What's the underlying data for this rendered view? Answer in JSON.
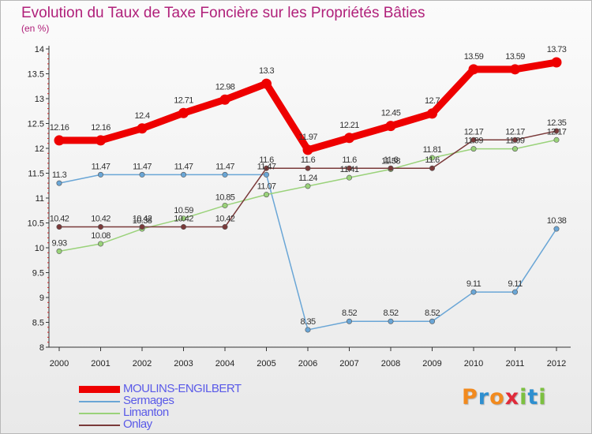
{
  "title": "Evolution du Taux de Taxe Foncière sur les Propriétés Bâties",
  "subtitle": "(en %)",
  "logo": {
    "text": "Proxiti",
    "letters": [
      "P",
      "r",
      "o",
      "x",
      "i",
      "t",
      "i"
    ],
    "colors": [
      "#f28a1e",
      "#2e8fd0",
      "#f28a1e",
      "#e02a3a",
      "#7cc040",
      "#2e8fd0",
      "#7cc040"
    ]
  },
  "chart_data": {
    "type": "line",
    "title": "Evolution du Taux de Taxe Foncière sur les Propriétés Bâties",
    "ylabel": "(en %)",
    "xlabel": "",
    "x": [
      "2000",
      "2001",
      "2002",
      "2003",
      "2004",
      "2005",
      "2006",
      "2007",
      "2008",
      "2009",
      "2010",
      "2011",
      "2012"
    ],
    "ylim": [
      8,
      14
    ],
    "yticks": [
      "8",
      "8.5",
      "9",
      "9.5",
      "10",
      "10.5",
      "11",
      "11.5",
      "12",
      "12.5",
      "13",
      "13.5",
      "14"
    ],
    "grid": false,
    "legend_position": "bottom-left",
    "series": [
      {
        "name": "MOULINS-ENGILBERT",
        "color": "#ee0000",
        "values": [
          12.16,
          12.16,
          12.4,
          12.71,
          12.98,
          13.3,
          11.97,
          12.21,
          12.45,
          12.7,
          13.59,
          13.59,
          13.73
        ],
        "labels": [
          "12.16",
          "12.16",
          "12.4",
          "12.71",
          "12.98",
          "13.3",
          "11.97",
          "12.21",
          "12.45",
          "12.7",
          "13.59",
          "13.59",
          "13.73"
        ]
      },
      {
        "name": "Sermages",
        "color": "#6aa6d6",
        "values": [
          11.3,
          11.47,
          11.47,
          11.47,
          11.47,
          11.47,
          8.35,
          8.52,
          8.52,
          8.52,
          9.11,
          9.11,
          10.38
        ],
        "labels": [
          "11.3",
          "11.47",
          "11.47",
          "11.47",
          "11.47",
          "11.47",
          "8.35",
          "8.52",
          "8.52",
          "8.52",
          "9.11",
          "9.11",
          "10.38"
        ]
      },
      {
        "name": "Limanton",
        "color": "#9ad27a",
        "values": [
          9.93,
          10.08,
          10.38,
          10.59,
          10.85,
          11.07,
          11.24,
          11.41,
          11.58,
          11.81,
          11.99,
          11.99,
          12.17
        ],
        "labels": [
          "9.93",
          "10.08",
          "10.38",
          "10.59",
          "10.85",
          "11.07",
          "11.24",
          "11.41",
          "11.58",
          "11.81",
          "11.99",
          "11.99",
          "12.17"
        ]
      },
      {
        "name": "Onlay",
        "color": "#7a3a3a",
        "values": [
          10.42,
          10.42,
          10.42,
          10.42,
          10.42,
          11.6,
          11.6,
          11.6,
          11.6,
          11.6,
          12.17,
          12.17,
          12.35
        ],
        "labels": [
          "10.42",
          "10.42",
          "10.42",
          "10.42",
          "10.42",
          "11.6",
          "11.6",
          "11.6",
          "11.6",
          "11.6",
          "12.17",
          "12.17",
          "12.35"
        ]
      }
    ]
  }
}
